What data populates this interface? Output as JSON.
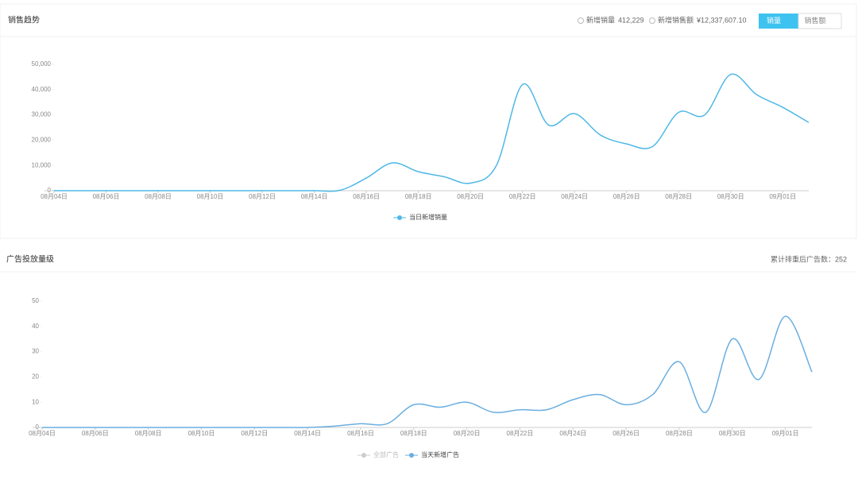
{
  "panels": [
    {
      "title": "销售趋势",
      "stats": [
        {
          "label": "新增销量",
          "value": "412,229"
        },
        {
          "label": "新增销售额",
          "value": "¥12,337,607.10"
        }
      ],
      "buttons": [
        "销量",
        "销售额"
      ]
    },
    {
      "title": "广告投放量级",
      "note": "累计排重后广告数：252"
    }
  ],
  "chart_data": [
    {
      "type": "line",
      "categories": [
        "08月04日",
        null,
        "08月06日",
        null,
        "08月08日",
        null,
        "08月10日",
        null,
        "08月12日",
        null,
        "08月14日",
        null,
        "08月16日",
        null,
        "08月18日",
        null,
        "08月20日",
        null,
        "08月22日",
        null,
        "08月24日",
        null,
        "08月26日",
        null,
        "08月28日",
        null,
        "08月30日",
        null,
        "09月01日",
        null
      ],
      "series": [
        {
          "name": "当日新增销量",
          "color": "#4fb8e6",
          "values": [
            0,
            0,
            0,
            0,
            0,
            0,
            0,
            0,
            0,
            0,
            0,
            200,
            5000,
            11000,
            7500,
            5500,
            3000,
            10000,
            42000,
            26000,
            30500,
            22000,
            18500,
            17500,
            31000,
            30000,
            46000,
            38000,
            33000,
            27000
          ]
        }
      ],
      "ylim": [
        0,
        50000
      ],
      "yticks": [
        0,
        {
          "value": 10000,
          "label": "10,000"
        },
        {
          "value": 20000,
          "label": "20,000"
        },
        {
          "value": 30000,
          "label": "30,000"
        },
        {
          "value": 40000,
          "label": "40,000"
        },
        {
          "value": 50000,
          "label": "50,000"
        }
      ],
      "grid": false
    },
    {
      "type": "line",
      "categories": [
        "08月04日",
        null,
        "08月06日",
        null,
        "08月08日",
        null,
        "08月10日",
        null,
        "08月12日",
        null,
        "08月14日",
        null,
        "08月16日",
        null,
        "08月18日",
        null,
        "08月20日",
        null,
        "08月22日",
        null,
        "08月24日",
        null,
        "08月26日",
        null,
        "08月28日",
        null,
        "08月30日",
        null,
        "09月01日",
        null
      ],
      "series": [
        {
          "name": "当天新增广告",
          "color": "#6aaee0",
          "values": [
            0,
            0,
            0,
            0,
            0,
            0,
            0,
            0,
            0,
            0,
            0,
            0.5,
            1.5,
            1.5,
            9,
            8,
            10,
            6,
            7,
            7,
            11,
            13,
            9,
            13,
            26,
            6,
            35,
            19,
            44,
            22
          ]
        }
      ],
      "inactive_legend": [
        {
          "name": "全部广告",
          "color": "#cccccc"
        }
      ],
      "ylim": [
        0,
        50
      ],
      "yticks": [
        0,
        10,
        20,
        30,
        40,
        50
      ],
      "grid": false
    }
  ]
}
